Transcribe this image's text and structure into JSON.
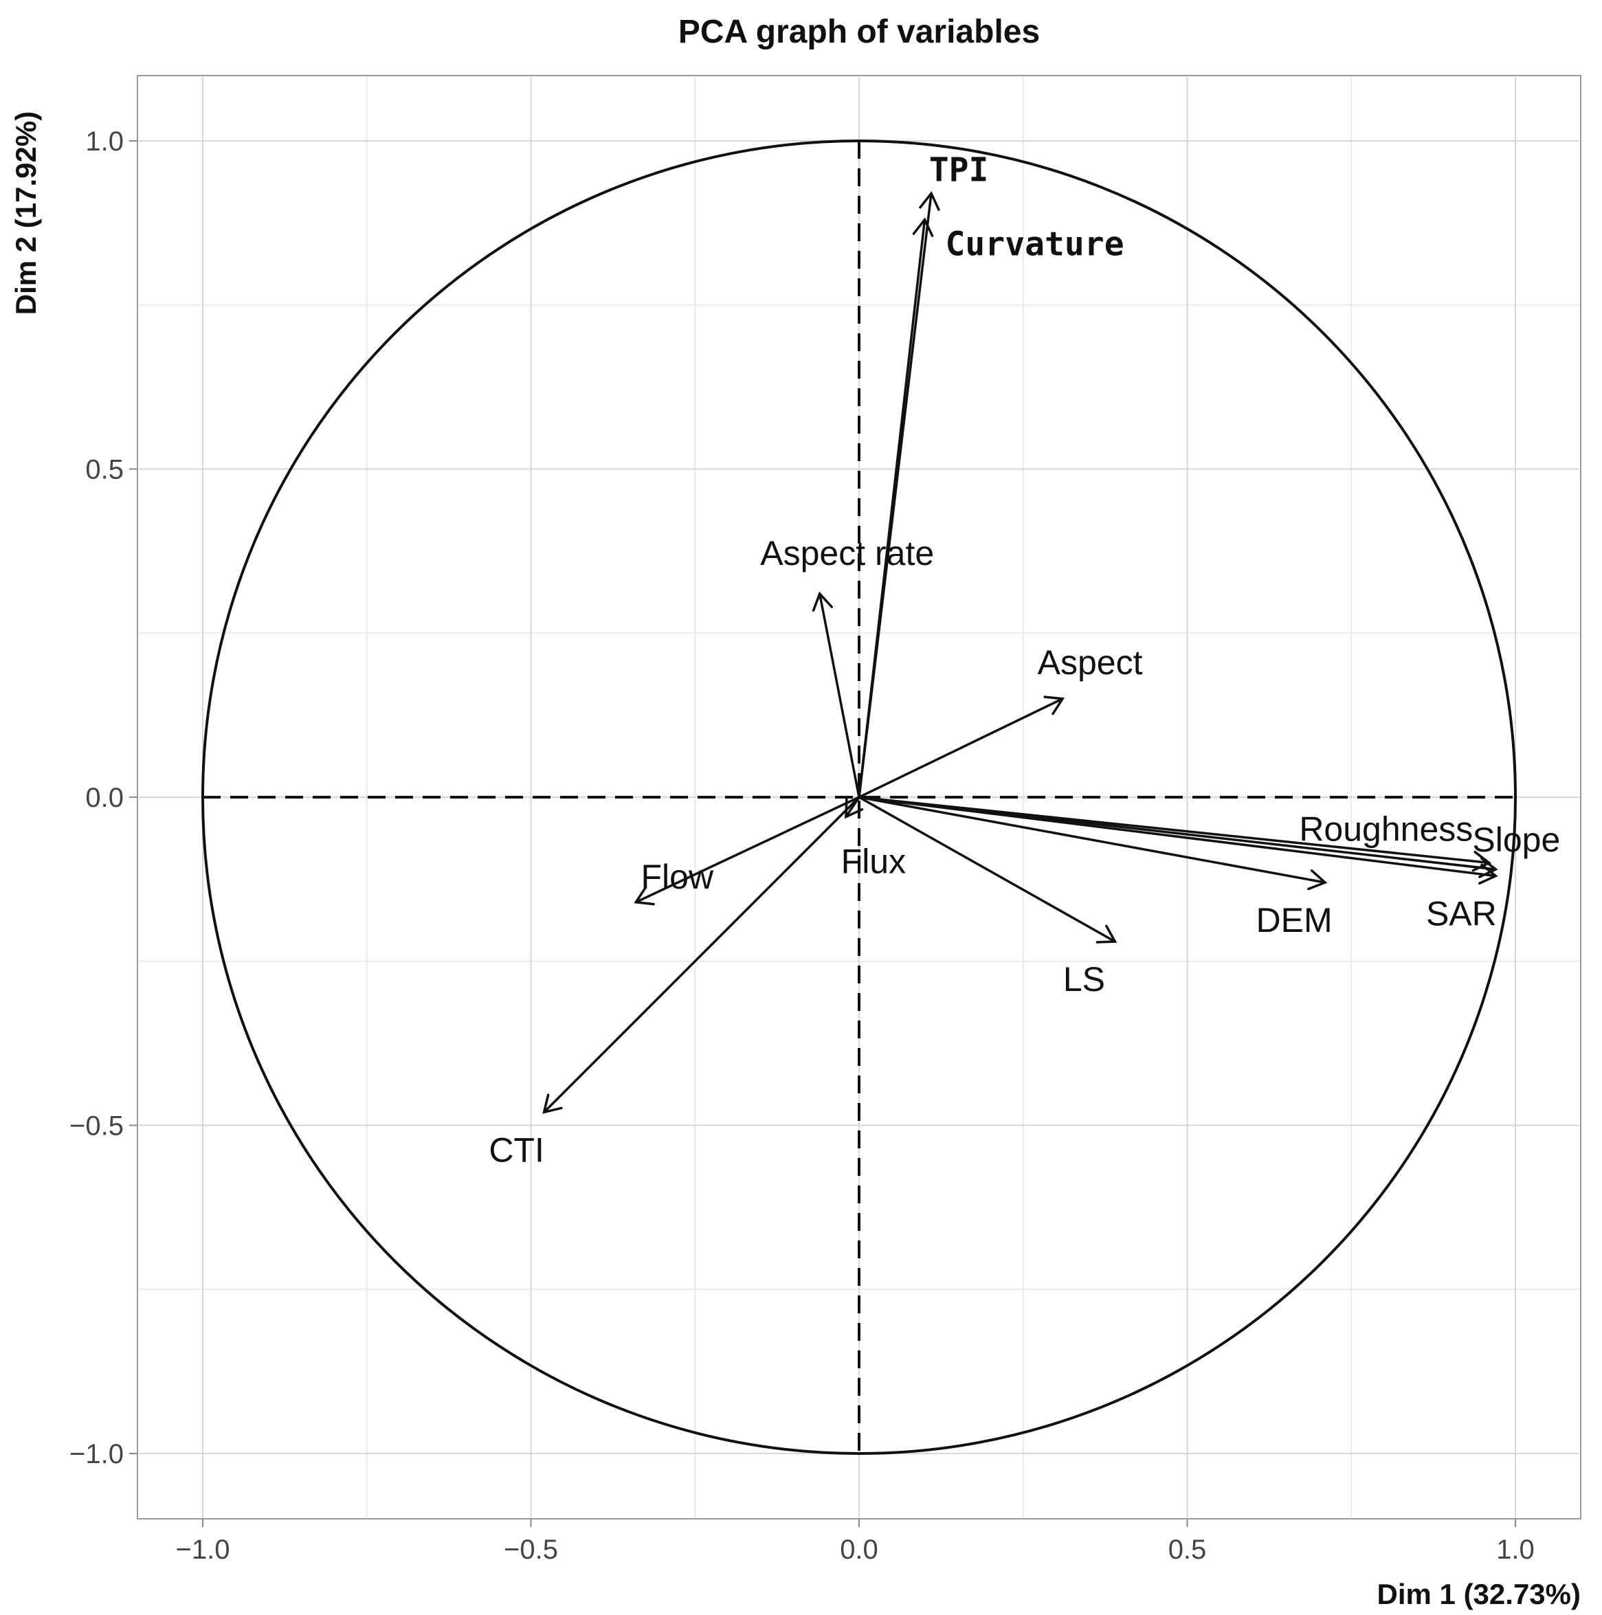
{
  "chart_data": {
    "type": "scatter",
    "title": "PCA graph of variables",
    "xlabel": "Dim 1 (32.73%)",
    "ylabel": "Dim 2 (17.92%)",
    "xlim": [
      -1.1,
      1.1
    ],
    "ylim": [
      -1.1,
      1.1
    ],
    "x_ticks": [
      -1.0,
      -0.5,
      0.0,
      0.5,
      1.0
    ],
    "y_ticks": [
      -1.0,
      -0.5,
      0.0,
      0.5,
      1.0
    ],
    "x_tick_labels": [
      "−1.0",
      "−0.5",
      "0.0",
      "0.5",
      "1.0"
    ],
    "y_tick_labels": [
      "−1.0",
      "−0.5",
      "0.0",
      "0.5",
      "1.0"
    ],
    "grid": true,
    "unit_circle": true,
    "variables": [
      {
        "name": "TPI",
        "x": 0.11,
        "y": 0.92
      },
      {
        "name": "Curvature",
        "x": 0.1,
        "y": 0.88
      },
      {
        "name": "Aspect rate",
        "x": -0.06,
        "y": 0.31
      },
      {
        "name": "Aspect",
        "x": 0.31,
        "y": 0.15
      },
      {
        "name": "Roughness",
        "x": 0.96,
        "y": -0.1
      },
      {
        "name": "Slope",
        "x": 0.97,
        "y": -0.11
      },
      {
        "name": "SAR",
        "x": 0.97,
        "y": -0.12
      },
      {
        "name": "DEM",
        "x": 0.71,
        "y": -0.13
      },
      {
        "name": "LS",
        "x": 0.39,
        "y": -0.22
      },
      {
        "name": "Flux",
        "x": -0.02,
        "y": -0.03
      },
      {
        "name": "Flow",
        "x": -0.34,
        "y": -0.16
      },
      {
        "name": "CTI",
        "x": -0.48,
        "y": -0.48
      }
    ]
  }
}
